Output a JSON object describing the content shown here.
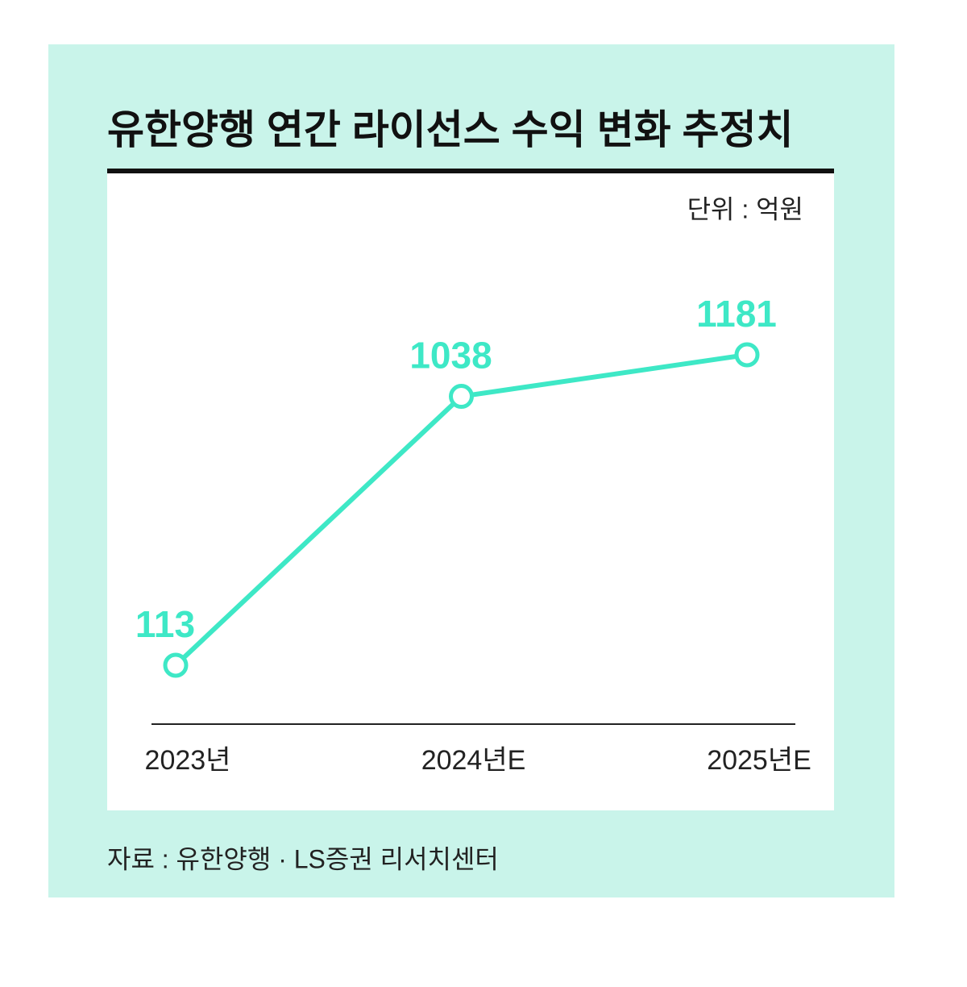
{
  "chart_data": {
    "type": "line",
    "title": "유한양행 연간 라이선스 수익 변화 추정치",
    "unit_label": "단위 : 억원",
    "source": "자료 : 유한양행 · LS증권 리서치센터",
    "categories": [
      "2023년",
      "2024년E",
      "2025년E"
    ],
    "series": [
      {
        "color": "#3ee8c6",
        "values": [
          113,
          1038,
          1181
        ]
      }
    ]
  }
}
